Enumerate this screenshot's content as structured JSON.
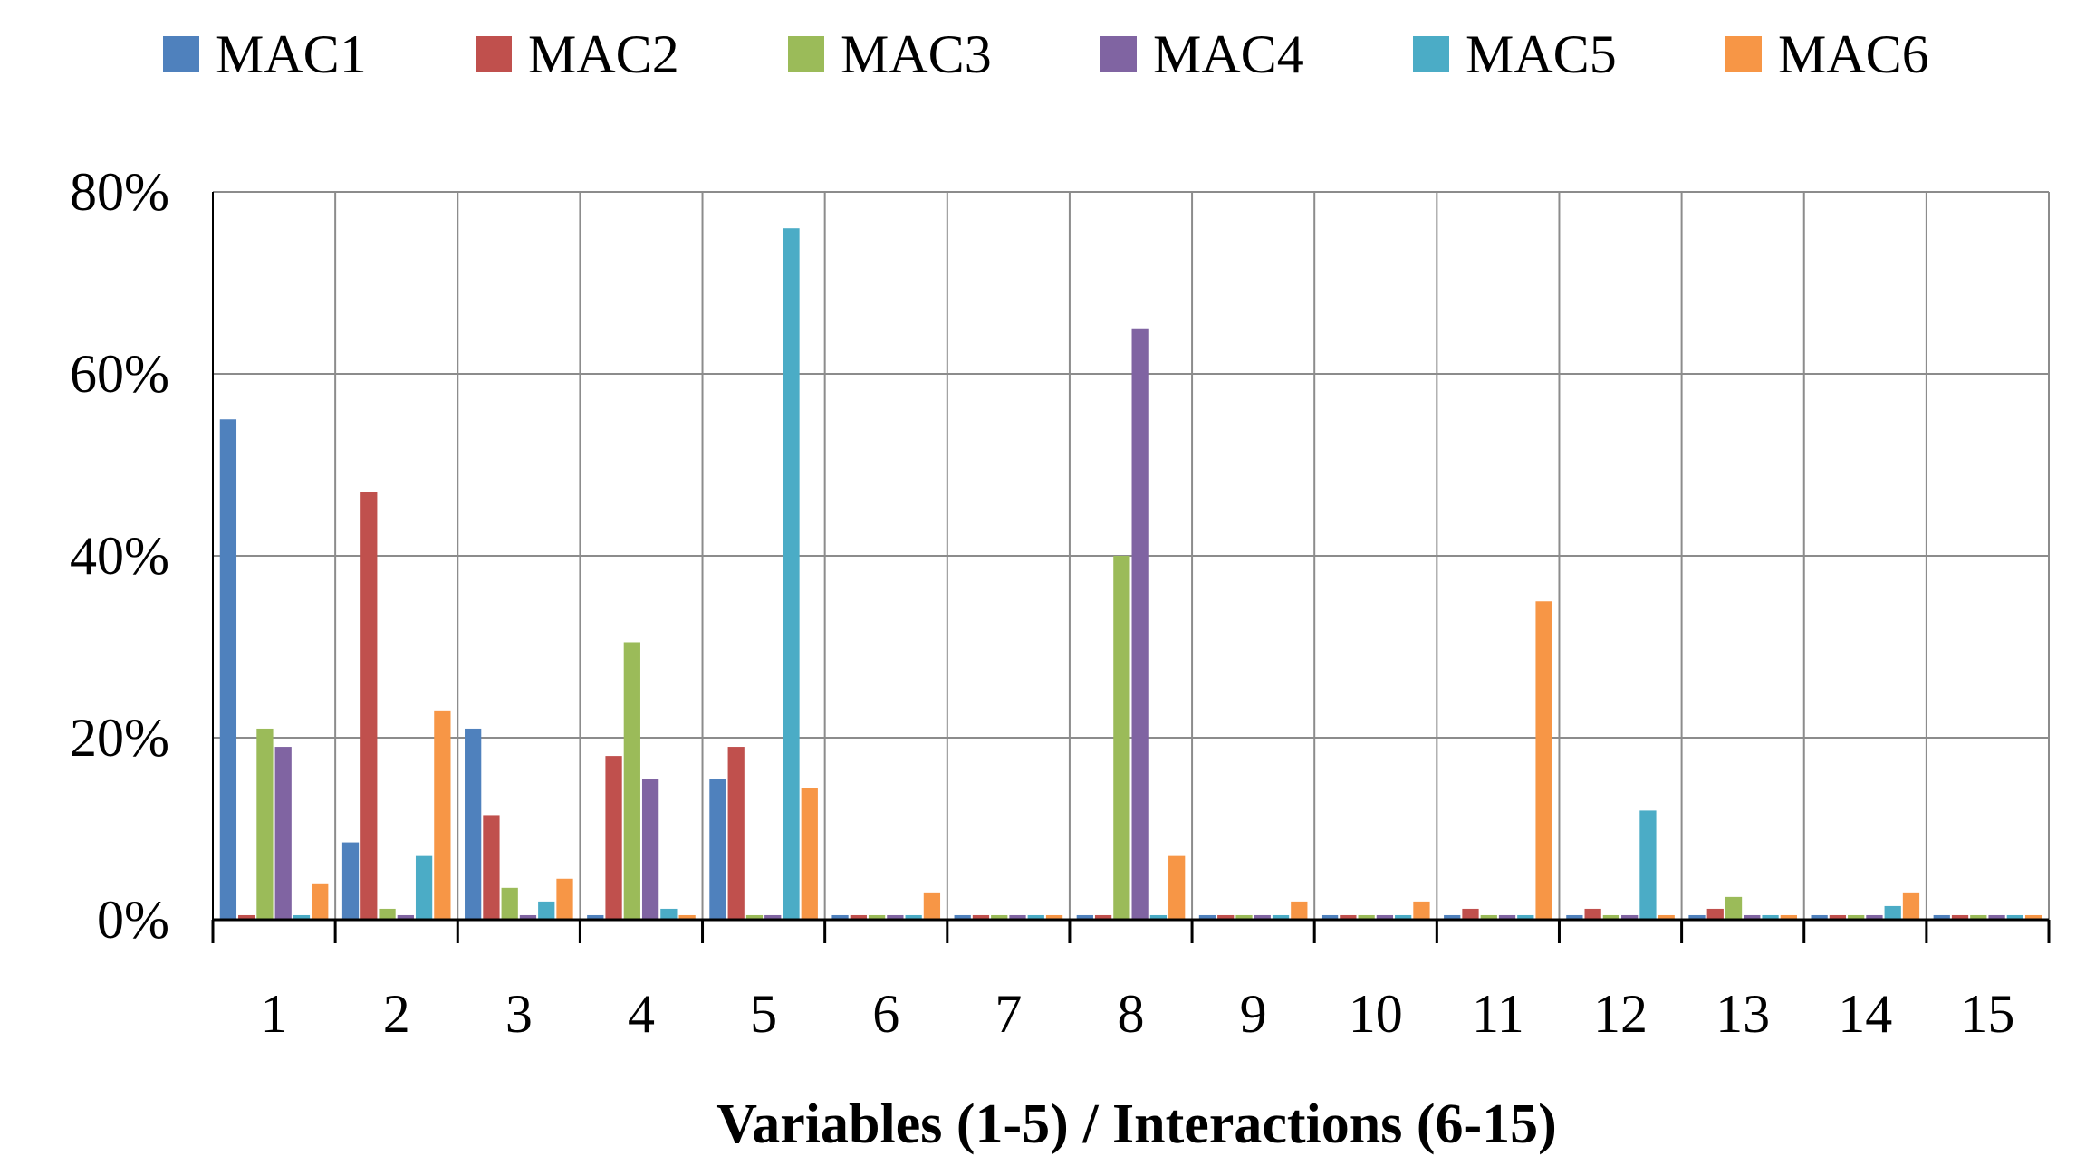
{
  "chart_data": {
    "type": "bar",
    "categories": [
      "1",
      "2",
      "3",
      "4",
      "5",
      "6",
      "7",
      "8",
      "9",
      "10",
      "11",
      "12",
      "13",
      "14",
      "15"
    ],
    "series": [
      {
        "name": "MAC1",
        "color": "#4f81bd",
        "values": [
          55,
          8.5,
          21,
          0.5,
          15.5,
          0.5,
          0.5,
          0.5,
          0.5,
          0.5,
          0.5,
          0.5,
          0.5,
          0.5,
          0.5
        ]
      },
      {
        "name": "MAC2",
        "color": "#c0504d",
        "values": [
          0.5,
          47,
          11.5,
          18,
          19,
          0.5,
          0.5,
          0.5,
          0.5,
          0.5,
          1.2,
          1.2,
          1.2,
          0.5,
          0.5
        ]
      },
      {
        "name": "MAC3",
        "color": "#9bbb59",
        "values": [
          21,
          1.2,
          3.5,
          30.5,
          0.5,
          0.5,
          0.5,
          40,
          0.5,
          0.5,
          0.5,
          0.5,
          2.5,
          0.5,
          0.5
        ]
      },
      {
        "name": "MAC4",
        "color": "#8064a2",
        "values": [
          19,
          0.5,
          0.5,
          15.5,
          0.5,
          0.5,
          0.5,
          65,
          0.5,
          0.5,
          0.5,
          0.5,
          0.5,
          0.5,
          0.5
        ]
      },
      {
        "name": "MAC5",
        "color": "#4bacc6",
        "values": [
          0.5,
          7,
          2,
          1.2,
          76,
          0.5,
          0.5,
          0.5,
          0.5,
          0.5,
          0.5,
          12,
          0.5,
          1.5,
          0.5
        ]
      },
      {
        "name": "MAC6",
        "color": "#f79646",
        "values": [
          4,
          23,
          4.5,
          0.5,
          14.5,
          3,
          0.5,
          7,
          2,
          2,
          35,
          0.5,
          0.5,
          3,
          0.5
        ]
      }
    ],
    "ylim": [
      0,
      80
    ],
    "yticks": [
      "0%",
      "20%",
      "40%",
      "60%",
      "80%"
    ],
    "ytick_values": [
      0,
      20,
      40,
      60,
      80
    ],
    "xlabel": "Variables (1-5) / Interactions (6-15)",
    "ylabel": "",
    "legend_position": "top",
    "grid": true
  }
}
